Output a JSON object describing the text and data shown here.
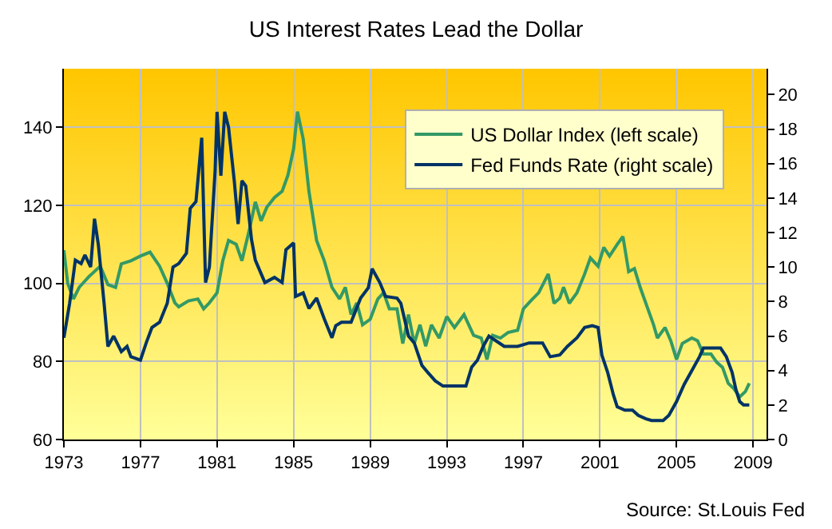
{
  "chart_data": {
    "type": "line",
    "title": "US Interest Rates Lead the Dollar",
    "annotations": [
      "Source: St.Louis Fed"
    ],
    "xlim": [
      1973,
      2009.7
    ],
    "xticks": [
      1973,
      1977,
      1981,
      1985,
      1989,
      1993,
      1997,
      2001,
      2005,
      2009
    ],
    "ylim": [
      60,
      155
    ],
    "yticks": [
      60,
      80,
      100,
      120,
      140
    ],
    "y2lim": [
      0,
      21.5
    ],
    "y2ticks": [
      0,
      2,
      4,
      6,
      8,
      10,
      12,
      14,
      16,
      18,
      20
    ],
    "grid": true,
    "legend": "top right",
    "line_style": "solid",
    "series": [
      {
        "name": "US Dollar Index (left scale)",
        "color": "#339966",
        "x": [
          1973.0,
          1973.2,
          1973.5,
          1973.8,
          1974.3,
          1974.9,
          1975.3,
          1975.7,
          1976.0,
          1976.5,
          1977.0,
          1977.5,
          1978.0,
          1978.4,
          1978.8,
          1979.0,
          1979.5,
          1980.0,
          1980.3,
          1980.6,
          1981.0,
          1981.3,
          1981.6,
          1982.0,
          1982.3,
          1982.7,
          1983.0,
          1983.3,
          1983.6,
          1984.0,
          1984.4,
          1984.7,
          1985.0,
          1985.2,
          1985.5,
          1985.8,
          1986.2,
          1986.6,
          1987.0,
          1987.4,
          1987.7,
          1988.0,
          1988.3,
          1988.6,
          1989.0,
          1989.4,
          1989.7,
          1990.0,
          1990.4,
          1990.7,
          1991.0,
          1991.3,
          1991.6,
          1991.9,
          1992.2,
          1992.6,
          1993.0,
          1993.4,
          1993.9,
          1994.4,
          1994.8,
          1995.1,
          1995.4,
          1995.8,
          1996.2,
          1996.7,
          1997.0,
          1997.4,
          1997.8,
          1998.3,
          1998.6,
          1998.9,
          1999.1,
          1999.4,
          1999.8,
          2000.2,
          2000.5,
          2000.9,
          2001.2,
          2001.5,
          2001.9,
          2002.2,
          2002.5,
          2002.8,
          2003.1,
          2003.5,
          2003.8,
          2004.0,
          2004.4,
          2004.7,
          2005.0,
          2005.3,
          2005.8,
          2006.1,
          2006.4,
          2006.8,
          2007.1,
          2007.4,
          2007.7,
          2008.0,
          2008.3,
          2008.6,
          2008.8
        ],
        "values": [
          108.5,
          100,
          96,
          99,
          101.7,
          104.4,
          99.7,
          99,
          105,
          105.8,
          107,
          108,
          104.4,
          100,
          95,
          94,
          95.5,
          96,
          93.5,
          95,
          97.6,
          105.8,
          111,
          110,
          105.8,
          114,
          120.9,
          116,
          119.5,
          122,
          123.6,
          127.7,
          134.5,
          144,
          137,
          123.6,
          111,
          105.8,
          99,
          96,
          99,
          92,
          95,
          89.4,
          90.8,
          96,
          97.6,
          93.5,
          93.5,
          84.6,
          92,
          84.6,
          89.4,
          83.9,
          89.4,
          86,
          91.5,
          88.7,
          92,
          86.7,
          86,
          80.5,
          86.7,
          86,
          87.4,
          88,
          93.5,
          95.6,
          97.6,
          102.4,
          94.9,
          96.2,
          99,
          94.9,
          97.6,
          102.4,
          106.5,
          104.4,
          109.2,
          107,
          110,
          112,
          103,
          103.8,
          99,
          93.5,
          89.4,
          86,
          88.7,
          85.3,
          80.5,
          84.6,
          86,
          85.3,
          81.9,
          81.9,
          79.8,
          78.5,
          74.4,
          73,
          70.9,
          72.3,
          74.4
        ]
      },
      {
        "name": "Fed Funds Rate (right scale)",
        "color": "#003366",
        "axis": "y2",
        "x": [
          1973.0,
          1973.3,
          1973.6,
          1973.9,
          1974.1,
          1974.4,
          1974.6,
          1974.8,
          1975.1,
          1975.3,
          1975.6,
          1976.0,
          1976.3,
          1976.5,
          1977.0,
          1977.3,
          1977.6,
          1978.0,
          1978.4,
          1978.7,
          1979.0,
          1979.4,
          1979.6,
          1979.9,
          1980.2,
          1980.4,
          1980.6,
          1980.9,
          1981.0,
          1981.2,
          1981.4,
          1981.6,
          1981.9,
          1982.1,
          1982.3,
          1982.5,
          1982.8,
          1983.0,
          1983.5,
          1984.0,
          1984.4,
          1984.6,
          1985.0,
          1985.1,
          1985.5,
          1985.8,
          1986.2,
          1986.6,
          1987.0,
          1987.2,
          1987.5,
          1988.0,
          1988.5,
          1988.9,
          1989.1,
          1989.5,
          1989.8,
          1990.4,
          1990.6,
          1991.0,
          1991.3,
          1991.7,
          1992.0,
          1992.4,
          1992.8,
          1993.5,
          1994.0,
          1994.3,
          1994.6,
          1994.9,
          1995.2,
          1995.6,
          1996.0,
          1996.7,
          1997.3,
          1998.0,
          1998.4,
          1998.9,
          1999.3,
          1999.8,
          2000.2,
          2000.6,
          2000.9,
          2001.1,
          2001.4,
          2001.7,
          2001.9,
          2002.3,
          2002.7,
          2003.0,
          2003.4,
          2003.7,
          2004.3,
          2004.6,
          2005.0,
          2005.4,
          2005.8,
          2006.2,
          2006.4,
          2007.0,
          2007.3,
          2007.6,
          2007.9,
          2008.1,
          2008.3,
          2008.5,
          2008.8
        ],
        "values": [
          5.9,
          7.9,
          10.4,
          10.2,
          10.7,
          10,
          12.8,
          11.3,
          7.9,
          5.4,
          6,
          5.1,
          5.4,
          4.8,
          4.6,
          5.6,
          6.5,
          6.8,
          7.9,
          10,
          10.2,
          10.8,
          13.4,
          13.8,
          17.5,
          9.1,
          10,
          15.6,
          19,
          15.3,
          19,
          18.1,
          15,
          12.5,
          15,
          14.7,
          11.6,
          10.4,
          9.1,
          9.4,
          9.1,
          11,
          11.4,
          8.3,
          8.5,
          7.6,
          8.2,
          7,
          5.9,
          6.6,
          6.8,
          6.8,
          8.2,
          8.8,
          9.9,
          9.1,
          8.3,
          8.2,
          7.9,
          6,
          5.6,
          4.3,
          3.9,
          3.4,
          3.1,
          3.1,
          3.1,
          4.2,
          4.6,
          5.4,
          6,
          5.7,
          5.4,
          5.4,
          5.6,
          5.6,
          4.8,
          4.9,
          5.4,
          5.9,
          6.5,
          6.6,
          6.5,
          4.9,
          3.9,
          2.6,
          1.9,
          1.7,
          1.7,
          1.4,
          1.2,
          1.1,
          1.1,
          1.4,
          2.2,
          3.2,
          4,
          4.8,
          5.3,
          5.3,
          5.3,
          4.8,
          3.9,
          2.9,
          2.2,
          2,
          2
        ]
      }
    ]
  }
}
